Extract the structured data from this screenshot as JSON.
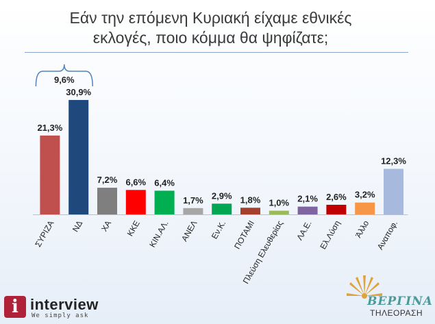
{
  "page": {
    "title_line1": "Εάν την επόμενη Κυριακή είχαμε εθνικές",
    "title_line2": "εκλογές, ποιο κόμμα θα ψηφίζατε;"
  },
  "chart_data": {
    "type": "bar",
    "categories": [
      "ΣΥΡΙΖΑ",
      "ΝΔ",
      "ΧΑ",
      "ΚΚΕ",
      "ΚΙΝ.ΑΛ.",
      "ΑΝΕΛ",
      "Εν.Κ.",
      "ΠΟΤΑΜΙ",
      "Πλεύση Ελευθερίας",
      "ΛΑ.Ε.",
      "Ελ.Λύση",
      "Άλλο",
      "Αναποφ."
    ],
    "values": [
      21.3,
      30.9,
      7.2,
      6.6,
      6.4,
      1.7,
      2.9,
      1.8,
      1.0,
      2.1,
      2.6,
      3.2,
      12.3
    ],
    "value_labels": [
      "21,3%",
      "30,9%",
      "7,2%",
      "6,6%",
      "6,4%",
      "1,7%",
      "2,9%",
      "1,8%",
      "1,0%",
      "2,1%",
      "2,6%",
      "3,2%",
      "12,3%"
    ],
    "colors": [
      "#c0504d",
      "#1f497d",
      "#7f7f7f",
      "#ff0000",
      "#00b050",
      "#a6a6a6",
      "#00a651",
      "#a5402f",
      "#9bbb59",
      "#8064a2",
      "#c00000",
      "#f79646",
      "#a7b9dc"
    ],
    "ylim": [
      0,
      32
    ],
    "grid": false,
    "gap_annotation": {
      "label": "9,6%",
      "from": "ΣΥΡΙΖΑ",
      "to": "ΝΔ"
    }
  },
  "logos": {
    "interview_name": "interview",
    "interview_tagline": "We simply ask",
    "vergina_name": "ΒΕΡΓΙΝΑ",
    "vergina_sub": "ΤΗΛΕΟΡΑΣΗ"
  }
}
